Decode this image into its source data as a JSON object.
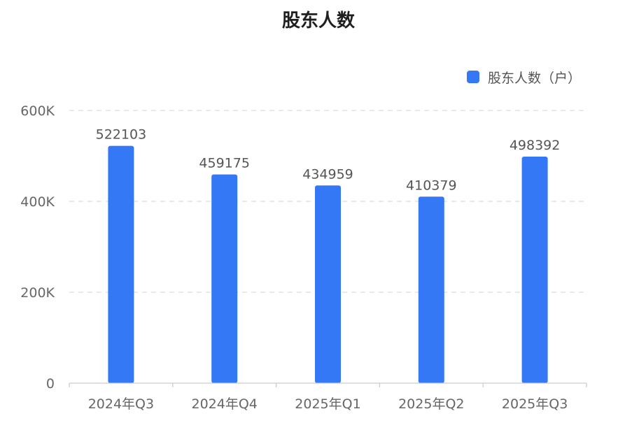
{
  "chart_data": {
    "type": "bar",
    "title": "股东人数",
    "categories": [
      "2024年Q3",
      "2024年Q4",
      "2025年Q1",
      "2025年Q2",
      "2025年Q3"
    ],
    "series": [
      {
        "name": "股东人数（户）",
        "values": [
          522103,
          459175,
          434959,
          410379,
          498392
        ],
        "color": "#3478f6"
      }
    ],
    "data_labels": [
      "522103",
      "459175",
      "434959",
      "410379",
      "498392"
    ],
    "ylim": [
      0,
      600000
    ],
    "y_ticks": [
      0,
      200000,
      400000,
      600000
    ],
    "y_tick_labels": [
      "0",
      "200K",
      "400K",
      "600K"
    ],
    "grid": true,
    "legend_position": "top-right"
  }
}
